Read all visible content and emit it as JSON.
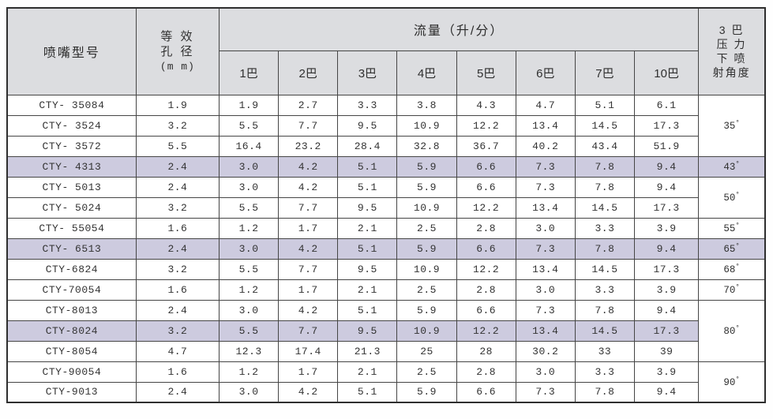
{
  "colors": {
    "header_bg": "#dcdde0",
    "highlight_bg": "#cdcbdf",
    "grid_line": "#454545",
    "text": "#2f2f2f"
  },
  "table": {
    "headers": {
      "model": "喷嘴型号",
      "aperture_lines": [
        "等 效",
        "孔 径",
        "(m m)"
      ],
      "flow_title": "流量（升/分）",
      "pressures": [
        "1巴",
        "2巴",
        "3巴",
        "4巴",
        "5巴",
        "6巴",
        "7巴",
        "10巴"
      ],
      "angle_lines": [
        "3 巴",
        "压 力",
        "下 喷",
        "射角度"
      ]
    },
    "rows": [
      {
        "model": "CTY- 35084",
        "aperture": "1.9",
        "flows": [
          "1.9",
          "2.7",
          "3.3",
          "3.8",
          "4.3",
          "4.7",
          "5.1",
          "6.1"
        ],
        "highlight": false
      },
      {
        "model": "CTY- 3524",
        "aperture": "3.2",
        "flows": [
          "5.5",
          "7.7",
          "9.5",
          "10.9",
          "12.2",
          "13.4",
          "14.5",
          "17.3"
        ],
        "highlight": false
      },
      {
        "model": "CTY- 3572",
        "aperture": "5.5",
        "flows": [
          "16.4",
          "23.2",
          "28.4",
          "32.8",
          "36.7",
          "40.2",
          "43.4",
          "51.9"
        ],
        "highlight": false
      },
      {
        "model": "CTY- 4313",
        "aperture": "2.4",
        "flows": [
          "3.0",
          "4.2",
          "5.1",
          "5.9",
          "6.6",
          "7.3",
          "7.8",
          "9.4"
        ],
        "highlight": true
      },
      {
        "model": "CTY- 5013",
        "aperture": "2.4",
        "flows": [
          "3.0",
          "4.2",
          "5.1",
          "5.9",
          "6.6",
          "7.3",
          "7.8",
          "9.4"
        ],
        "highlight": false
      },
      {
        "model": "CTY- 5024",
        "aperture": "3.2",
        "flows": [
          "5.5",
          "7.7",
          "9.5",
          "10.9",
          "12.2",
          "13.4",
          "14.5",
          "17.3"
        ],
        "highlight": false
      },
      {
        "model": "CTY- 55054",
        "aperture": "1.6",
        "flows": [
          "1.2",
          "1.7",
          "2.1",
          "2.5",
          "2.8",
          "3.0",
          "3.3",
          "3.9"
        ],
        "highlight": false
      },
      {
        "model": "CTY- 6513",
        "aperture": "2.4",
        "flows": [
          "3.0",
          "4.2",
          "5.1",
          "5.9",
          "6.6",
          "7.3",
          "7.8",
          "9.4"
        ],
        "highlight": true
      },
      {
        "model": "CTY-6824",
        "aperture": "3.2",
        "flows": [
          "5.5",
          "7.7",
          "9.5",
          "10.9",
          "12.2",
          "13.4",
          "14.5",
          "17.3"
        ],
        "highlight": false
      },
      {
        "model": "CTY-70054",
        "aperture": "1.6",
        "flows": [
          "1.2",
          "1.7",
          "2.1",
          "2.5",
          "2.8",
          "3.0",
          "3.3",
          "3.9"
        ],
        "highlight": false
      },
      {
        "model": "CTY-8013",
        "aperture": "2.4",
        "flows": [
          "3.0",
          "4.2",
          "5.1",
          "5.9",
          "6.6",
          "7.3",
          "7.8",
          "9.4"
        ],
        "highlight": false
      },
      {
        "model": "CTY-8024",
        "aperture": "3.2",
        "flows": [
          "5.5",
          "7.7",
          "9.5",
          "10.9",
          "12.2",
          "13.4",
          "14.5",
          "17.3"
        ],
        "highlight": true
      },
      {
        "model": "CTY-8054",
        "aperture": "4.7",
        "flows": [
          "12.3",
          "17.4",
          "21.3",
          "25",
          "28",
          "30.2",
          "33",
          "39"
        ],
        "highlight": false
      },
      {
        "model": "CTY-90054",
        "aperture": "1.6",
        "flows": [
          "1.2",
          "1.7",
          "2.1",
          "2.5",
          "2.8",
          "3.0",
          "3.3",
          "3.9"
        ],
        "highlight": false
      },
      {
        "model": "CTY-9013",
        "aperture": "2.4",
        "flows": [
          "3.0",
          "4.2",
          "5.1",
          "5.9",
          "6.6",
          "7.3",
          "7.8",
          "9.4"
        ],
        "highlight": false
      }
    ],
    "angle_groups": [
      {
        "label": "35",
        "degree": "°",
        "start": 0,
        "rowspan": 3,
        "highlight": false
      },
      {
        "label": "43",
        "degree": "°",
        "start": 3,
        "rowspan": 1,
        "highlight": true
      },
      {
        "label": "50",
        "degree": "°",
        "start": 4,
        "rowspan": 2,
        "highlight": false
      },
      {
        "label": "55",
        "degree": "°",
        "start": 6,
        "rowspan": 1,
        "highlight": false
      },
      {
        "label": "65",
        "degree": "°",
        "start": 7,
        "rowspan": 1,
        "highlight": true
      },
      {
        "label": "68",
        "degree": "°",
        "start": 8,
        "rowspan": 1,
        "highlight": false
      },
      {
        "label": "70",
        "degree": "°",
        "start": 9,
        "rowspan": 1,
        "highlight": false
      },
      {
        "label": "80",
        "degree": "°",
        "start": 10,
        "rowspan": 3,
        "highlight": false
      },
      {
        "label": "90",
        "degree": "°",
        "start": 13,
        "rowspan": 2,
        "highlight": false
      }
    ]
  }
}
